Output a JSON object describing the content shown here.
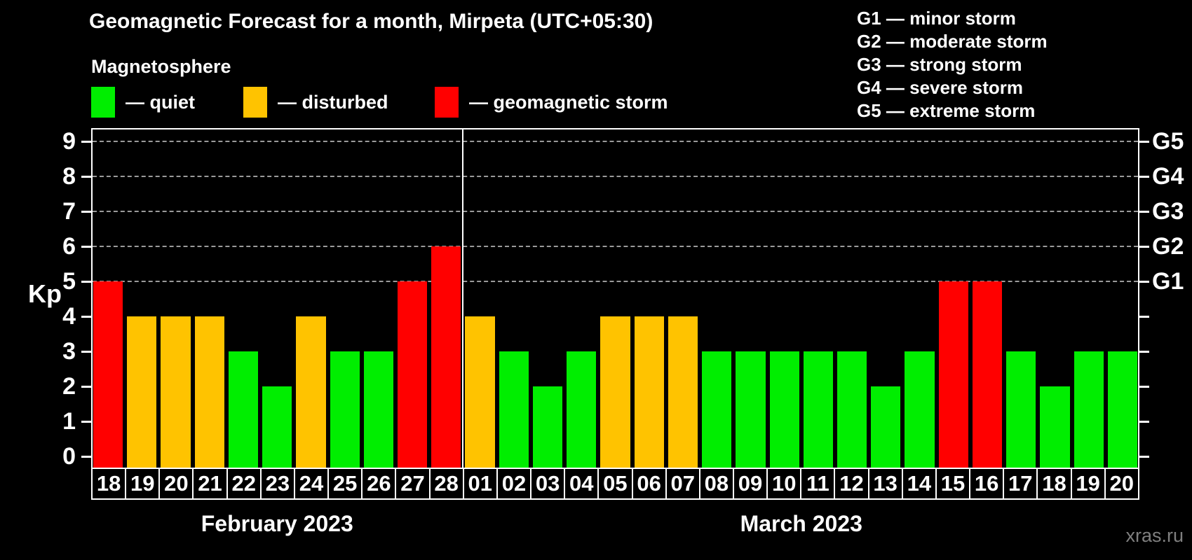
{
  "title": "Geomagnetic Forecast for a month, Mirpeta (UTC+05:30)",
  "subtitle": "Magnetosphere",
  "watermark": "xras.ru",
  "colors": {
    "quiet": "#00ee00",
    "disturbed": "#ffc300",
    "storm": "#ff0000",
    "axis": "#ffffff",
    "grid": "#9a9a9a",
    "background": "#000000",
    "watermark": "#7f7f7f"
  },
  "legend": {
    "items": [
      {
        "status": "quiet",
        "label": "— quiet"
      },
      {
        "status": "disturbed",
        "label": "— disturbed"
      },
      {
        "status": "storm",
        "label": "— geomagnetic storm"
      }
    ]
  },
  "g_scale_legend": {
    "items": [
      "G1 — minor storm",
      "G2 — moderate storm",
      "G3 — strong storm",
      "G4 — severe storm",
      "G5 — extreme storm"
    ]
  },
  "axes": {
    "y_label": "Kp",
    "y_ticks": [
      0,
      1,
      2,
      3,
      4,
      5,
      6,
      7,
      8,
      9
    ],
    "right_labels": [
      {
        "kp": 5,
        "label": "G1"
      },
      {
        "kp": 6,
        "label": "G2"
      },
      {
        "kp": 7,
        "label": "G3"
      },
      {
        "kp": 8,
        "label": "G4"
      },
      {
        "kp": 9,
        "label": "G5"
      }
    ],
    "gridline_levels": [
      5,
      6,
      7,
      8,
      9
    ]
  },
  "months": [
    {
      "label": "February 2023",
      "days": 11
    },
    {
      "label": "March 2023",
      "days": 20
    }
  ],
  "chart_data": {
    "type": "bar",
    "title": "Geomagnetic Forecast for a month, Mirpeta (UTC+05:30)",
    "xlabel": "",
    "ylabel": "Kp",
    "ylim": [
      0,
      9
    ],
    "y_ticks": [
      0,
      1,
      2,
      3,
      4,
      5,
      6,
      7,
      8,
      9
    ],
    "right_axis": {
      "G1": 5,
      "G2": 6,
      "G3": 7,
      "G4": 8,
      "G5": 9
    },
    "grid": "horizontal dashed lines at Kp 5-9 (G1-G5)",
    "legend_position": "top-left",
    "status_rule": "kp<=3 quiet (green), kp=4 disturbed (orange), kp>=5 geomagnetic storm (red)",
    "categories": [
      "Feb 18",
      "Feb 19",
      "Feb 20",
      "Feb 21",
      "Feb 22",
      "Feb 23",
      "Feb 24",
      "Feb 25",
      "Feb 26",
      "Feb 27",
      "Feb 28",
      "Mar 01",
      "Mar 02",
      "Mar 03",
      "Mar 04",
      "Mar 05",
      "Mar 06",
      "Mar 07",
      "Mar 08",
      "Mar 09",
      "Mar 10",
      "Mar 11",
      "Mar 12",
      "Mar 13",
      "Mar 14",
      "Mar 15",
      "Mar 16",
      "Mar 17",
      "Mar 18",
      "Mar 19",
      "Mar 20"
    ],
    "day_labels": [
      "18",
      "19",
      "20",
      "21",
      "22",
      "23",
      "24",
      "25",
      "26",
      "27",
      "28",
      "01",
      "02",
      "03",
      "04",
      "05",
      "06",
      "07",
      "08",
      "09",
      "10",
      "11",
      "12",
      "13",
      "14",
      "15",
      "16",
      "17",
      "18",
      "19",
      "20"
    ],
    "values": [
      5,
      4,
      4,
      4,
      3,
      2,
      4,
      3,
      3,
      5,
      6,
      4,
      3,
      2,
      3,
      4,
      4,
      4,
      3,
      3,
      3,
      3,
      3,
      2,
      3,
      5,
      5,
      3,
      2,
      3,
      3
    ]
  }
}
